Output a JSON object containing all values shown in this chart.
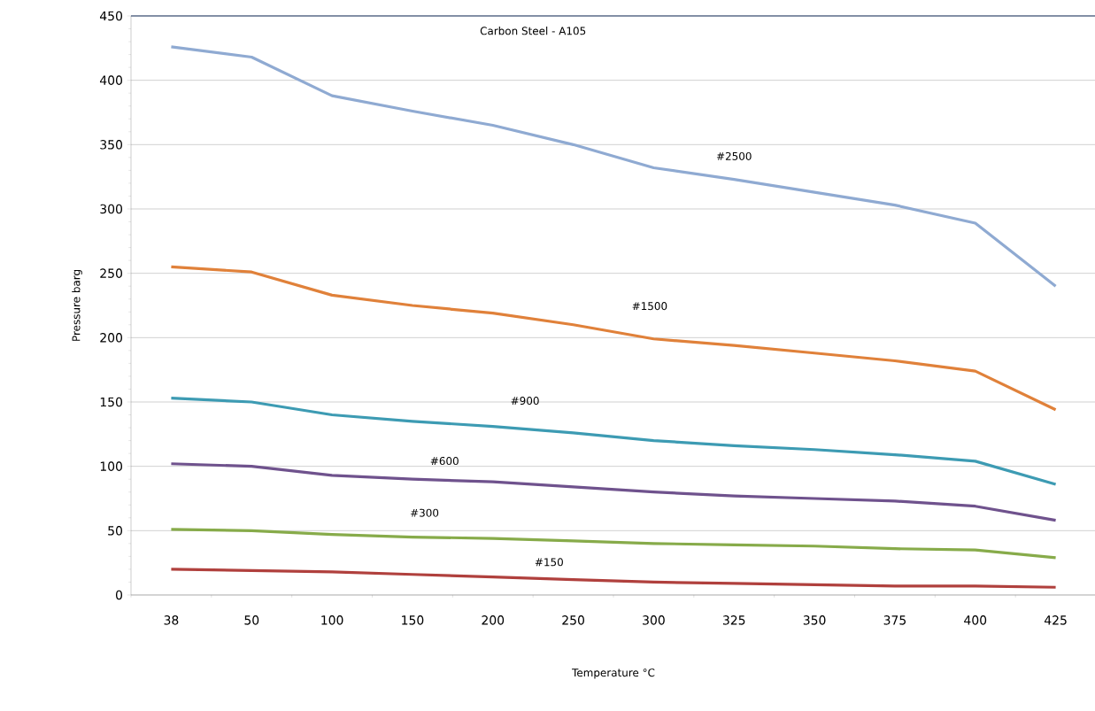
{
  "chart_data": {
    "type": "line",
    "title": "Carbon Steel - A105",
    "xlabel": "Temperature °C",
    "ylabel": "Pressure barg",
    "categories": [
      "38",
      "50",
      "100",
      "150",
      "200",
      "250",
      "300",
      "325",
      "350",
      "375",
      "400",
      "425"
    ],
    "series": [
      {
        "name": "#2500",
        "color": "#8faad2",
        "values": [
          426,
          418,
          388,
          376,
          365,
          350,
          332,
          323,
          313,
          303,
          289,
          240
        ]
      },
      {
        "name": "#1500",
        "color": "#e0813a",
        "values": [
          255,
          251,
          233,
          225,
          219,
          210,
          199,
          194,
          188,
          182,
          174,
          144
        ]
      },
      {
        "name": "#900",
        "color": "#3d9bb3",
        "values": [
          153,
          150,
          140,
          135,
          131,
          126,
          120,
          116,
          113,
          109,
          104,
          86
        ]
      },
      {
        "name": "#600",
        "color": "#6f528d",
        "values": [
          102,
          100,
          93,
          90,
          88,
          84,
          80,
          77,
          75,
          73,
          69,
          58
        ]
      },
      {
        "name": "#300",
        "color": "#87ab4a",
        "values": [
          51,
          50,
          47,
          45,
          44,
          42,
          40,
          39,
          38,
          36,
          35,
          29
        ]
      },
      {
        "name": "#150",
        "color": "#b0403d",
        "values": [
          20,
          19,
          18,
          16,
          14,
          12,
          10,
          9,
          8,
          7,
          7,
          6
        ]
      }
    ],
    "ylim": [
      0,
      450
    ],
    "yticks": [
      0,
      50,
      100,
      150,
      200,
      250,
      300,
      350,
      400,
      450
    ],
    "grid": "y",
    "legend": false,
    "marker": "none",
    "line_style": "solid"
  }
}
